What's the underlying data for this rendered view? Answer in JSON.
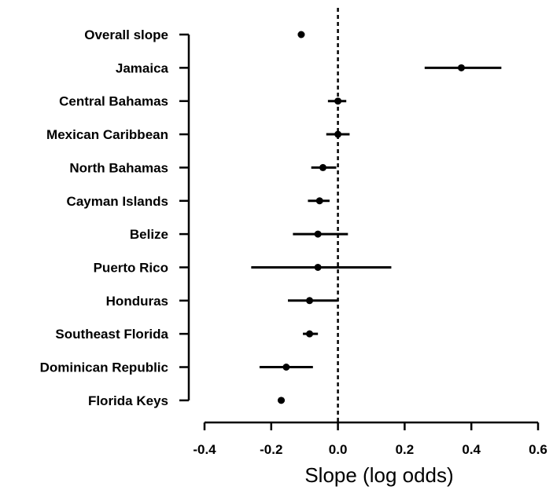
{
  "chart_data": {
    "type": "forest",
    "xlabel": "Slope (log odds)",
    "xlim": [
      -0.4,
      0.6
    ],
    "xticks": [
      -0.4,
      -0.2,
      0.0,
      0.2,
      0.4,
      0.6
    ],
    "xtick_labels": [
      "-0.4",
      "-0.2",
      "0.0",
      "0.2",
      "0.4",
      "0.6"
    ],
    "reference_line": 0.0,
    "grid": false,
    "categories": [
      "Overall slope",
      "Jamaica",
      "Central Bahamas",
      "Mexican Caribbean",
      "North Bahamas",
      "Cayman Islands",
      "Belize",
      "Puerto Rico",
      "Honduras",
      "Southeast Florida",
      "Dominican Republic",
      "Florida Keys"
    ],
    "estimates": [
      -0.11,
      0.37,
      0.0,
      0.0,
      -0.045,
      -0.055,
      -0.06,
      -0.06,
      -0.085,
      -0.085,
      -0.155,
      -0.17
    ],
    "lower": [
      -0.12,
      0.26,
      -0.03,
      -0.035,
      -0.08,
      -0.09,
      -0.135,
      -0.26,
      -0.15,
      -0.105,
      -0.235,
      -0.18
    ],
    "upper": [
      -0.1,
      0.49,
      0.025,
      0.035,
      -0.005,
      -0.025,
      0.03,
      0.16,
      0.0,
      -0.06,
      -0.075,
      -0.16
    ]
  }
}
